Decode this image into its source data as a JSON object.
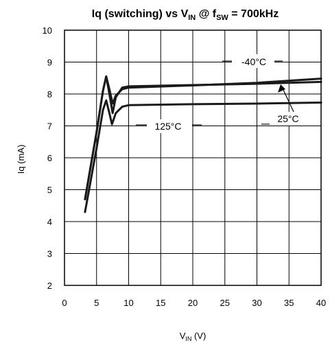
{
  "chart_data": {
    "type": "line",
    "title": {
      "pre": "Iq (switching) vs V",
      "sub1": "IN",
      "mid": " @ f",
      "sub2": "SW",
      "post": " = 700kHz"
    },
    "xlabel": {
      "main": "V",
      "sub": "IN",
      "post": " (V)"
    },
    "ylabel": "Iq (mA)",
    "xlim": [
      0,
      40
    ],
    "ylim": [
      2,
      10
    ],
    "xticks": [
      0,
      5,
      10,
      15,
      20,
      25,
      30,
      35,
      40
    ],
    "yticks": [
      2,
      3,
      4,
      5,
      6,
      7,
      8,
      9,
      10
    ],
    "grid": true,
    "series": [
      {
        "name": "-40°C",
        "x": [
          3.2,
          5.0,
          6.0,
          6.5,
          7.0,
          7.5,
          8.0,
          9.0,
          10,
          20,
          30,
          40
        ],
        "y": [
          4.7,
          6.8,
          8.1,
          8.55,
          8.15,
          7.7,
          7.95,
          8.15,
          8.2,
          8.27,
          8.35,
          8.48
        ]
      },
      {
        "name": "25°C",
        "x": [
          3.2,
          5.0,
          6.0,
          6.5,
          7.0,
          7.5,
          8.0,
          9.0,
          10,
          20,
          30,
          40
        ],
        "y": [
          4.7,
          6.8,
          8.1,
          8.55,
          8.0,
          7.4,
          7.9,
          8.2,
          8.24,
          8.28,
          8.32,
          8.38
        ]
      },
      {
        "name": "125°C",
        "x": [
          3.2,
          5.0,
          6.0,
          6.5,
          7.0,
          7.4,
          8.0,
          9.0,
          10,
          20,
          30,
          40
        ],
        "y": [
          4.3,
          6.3,
          7.5,
          7.8,
          7.4,
          7.05,
          7.4,
          7.6,
          7.65,
          7.68,
          7.7,
          7.73
        ]
      }
    ],
    "annotations": [
      {
        "text": "-40°C",
        "series": "-40°C"
      },
      {
        "text": "25°C",
        "series": "25°C"
      },
      {
        "text": "125°C",
        "series": "125°C"
      }
    ]
  }
}
